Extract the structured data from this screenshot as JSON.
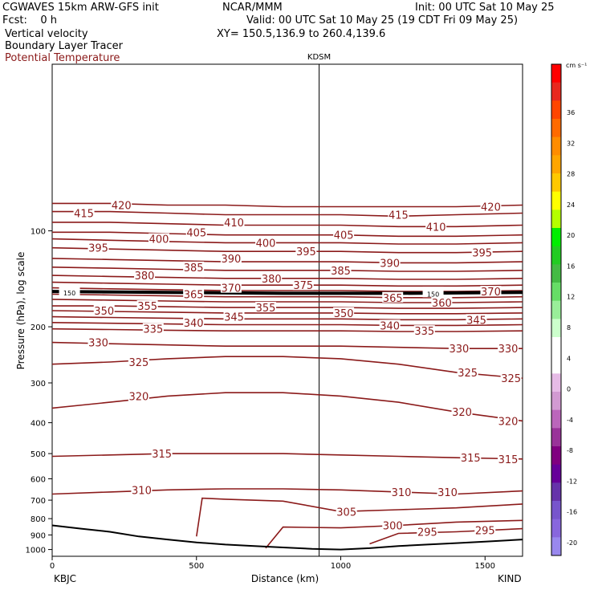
{
  "header": {
    "model": "CGWAVES 15km ARW-GFS init",
    "org": "NCAR/MMM",
    "init": "Init: 00 UTC Sat 10 May 25",
    "fcst": "Fcst:    0 h",
    "valid": "Valid: 00 UTC Sat 10 May 25 (19 CDT Fri 09 May 25)",
    "field1": "Vertical velocity",
    "field2": "Boundary Layer Tracer",
    "xy": "XY= 150.5,136.9 to 260.4,139.6",
    "field3": "Potential Temperature"
  },
  "colors": {
    "theta": "#8b1a1a",
    "axis": "#000000"
  },
  "chart_data": {
    "type": "line",
    "title": "",
    "top_label": "KDSM",
    "xlabel": "Distance (km)",
    "ylabel": "Pressure (hPa), log scale",
    "x_ticks": [
      "0",
      "500",
      "1000",
      "1500"
    ],
    "x_tick_values": [
      0,
      500,
      1000,
      1500
    ],
    "xlim": [
      0,
      1630
    ],
    "y_ticks": [
      "100",
      "200",
      "300",
      "400",
      "500",
      "600",
      "700",
      "800",
      "900",
      "1000"
    ],
    "y_tick_values": [
      100,
      200,
      300,
      400,
      500,
      600,
      700,
      800,
      900,
      1000
    ],
    "ylim": [
      1050,
      30
    ],
    "y_scale": "log",
    "endpoint_labels": [
      "KBJC",
      "KIND"
    ],
    "marker_x": 925,
    "marker_label": "KDSM",
    "colorbar": {
      "units": "cm s⁻¹",
      "labels": [
        "36",
        "32",
        "28",
        "24",
        "20",
        "16",
        "12",
        "8",
        "4",
        "0",
        "-4",
        "-8",
        "-12",
        "-16",
        "-20"
      ],
      "colors": [
        "#ff0000",
        "#e8281e",
        "#ff4500",
        "#ff6a00",
        "#ff8c00",
        "#ffa500",
        "#ffc800",
        "#ffff00",
        "#b4ff00",
        "#00ee00",
        "#22cc22",
        "#44bb44",
        "#66dd66",
        "#99ee99",
        "#ccffcc",
        "#ffffff",
        "#ffffff",
        "#e6bbe6",
        "#d29ad2",
        "#bb66bb",
        "#993399",
        "#800080",
        "#660099",
        "#6633aa",
        "#7755cc",
        "#8866dd",
        "#9988ee"
      ]
    },
    "series": [
      {
        "name": "415",
        "x": [
          0,
          200,
          400,
          600,
          800,
          1000,
          1200,
          1400,
          1630
        ],
        "y": [
          87,
          87,
          88,
          89,
          89,
          89,
          90,
          89,
          88
        ]
      },
      {
        "name": "420",
        "x": [
          0,
          200,
          400,
          600,
          800,
          1000,
          1200,
          1400,
          1630
        ],
        "y": [
          82,
          82,
          83,
          83,
          84,
          84,
          84,
          84,
          83
        ]
      },
      {
        "name": "410",
        "x": [
          0,
          200,
          400,
          600,
          800,
          1000,
          1200,
          1400,
          1630
        ],
        "y": [
          94,
          94,
          95,
          96,
          96,
          96,
          97,
          97,
          96
        ]
      },
      {
        "name": "405",
        "x": [
          0,
          200,
          400,
          600,
          800,
          1000,
          1200,
          1400,
          1630
        ],
        "y": [
          101,
          101,
          102,
          103,
          103,
          103,
          104,
          104,
          103
        ]
      },
      {
        "name": "400",
        "x": [
          0,
          200,
          400,
          600,
          800,
          1000,
          1200,
          1400,
          1630
        ],
        "y": [
          106,
          107,
          108,
          109,
          109,
          109,
          110,
          110,
          109
        ]
      },
      {
        "name": "395",
        "x": [
          0,
          200,
          400,
          600,
          800,
          1000,
          1200,
          1400,
          1630
        ],
        "y": [
          113,
          114,
          115,
          116,
          116,
          116,
          117,
          117,
          116
        ]
      },
      {
        "name": "390",
        "x": [
          0,
          200,
          400,
          600,
          800,
          1000,
          1200,
          1400,
          1630
        ],
        "y": [
          122,
          123,
          124,
          125,
          125,
          125,
          126,
          126,
          125
        ]
      },
      {
        "name": "385",
        "x": [
          0,
          200,
          400,
          600,
          800,
          1000,
          1200,
          1400,
          1630
        ],
        "y": [
          130,
          131,
          132,
          133,
          133,
          133,
          134,
          134,
          133
        ]
      },
      {
        "name": "380",
        "x": [
          0,
          200,
          400,
          600,
          800,
          1000,
          1200,
          1400,
          1630
        ],
        "y": [
          138,
          139,
          140,
          141,
          141,
          141,
          142,
          142,
          141
        ]
      },
      {
        "name": "375",
        "x": [
          0,
          200,
          400,
          600,
          800,
          1000,
          1200,
          1400,
          1630
        ],
        "y": [
          145,
          146,
          147,
          148,
          148,
          148,
          149,
          149,
          148
        ]
      },
      {
        "name": "370",
        "x": [
          0,
          200,
          400,
          600,
          800,
          1000,
          1200,
          1400,
          1630
        ],
        "y": [
          151,
          152,
          153,
          154,
          154,
          154,
          155,
          155,
          154
        ]
      },
      {
        "name": "365",
        "x": [
          0,
          200,
          400,
          600,
          800,
          1000,
          1200,
          1400,
          1630
        ],
        "y": [
          158,
          159,
          160,
          161,
          161,
          161,
          162,
          162,
          161
        ]
      },
      {
        "name": "360",
        "x": [
          0,
          200,
          400,
          600,
          800,
          1000,
          1200,
          1400,
          1630
        ],
        "y": [
          164,
          165,
          166,
          167,
          167,
          167,
          168,
          168,
          167
        ]
      },
      {
        "name": "355",
        "x": [
          0,
          200,
          400,
          600,
          800,
          1000,
          1200,
          1400,
          1630
        ],
        "y": [
          172,
          172,
          173,
          174,
          174,
          174,
          175,
          175,
          174
        ]
      },
      {
        "name": "350",
        "x": [
          0,
          200,
          400,
          600,
          800,
          1000,
          1200,
          1400,
          1630
        ],
        "y": [
          178,
          179,
          180,
          181,
          181,
          181,
          182,
          182,
          181
        ]
      },
      {
        "name": "345",
        "x": [
          0,
          200,
          400,
          600,
          800,
          1000,
          1200,
          1400,
          1630
        ],
        "y": [
          186,
          187,
          188,
          189,
          189,
          189,
          190,
          190,
          189
        ]
      },
      {
        "name": "340",
        "x": [
          0,
          200,
          400,
          600,
          800,
          1000,
          1200,
          1400,
          1630
        ],
        "y": [
          194,
          195,
          196,
          197,
          197,
          197,
          198,
          198,
          197
        ]
      },
      {
        "name": "335",
        "x": [
          0,
          200,
          400,
          600,
          800,
          1000,
          1200,
          1400,
          1630
        ],
        "y": [
          203,
          204,
          205,
          206,
          206,
          206,
          207,
          207,
          206
        ]
      },
      {
        "name": "330",
        "x": [
          0,
          200,
          400,
          600,
          800,
          1000,
          1200,
          1400,
          1630
        ],
        "y": [
          224,
          226,
          228,
          230,
          230,
          230,
          232,
          234,
          234
        ]
      },
      {
        "name": "325",
        "x": [
          0,
          200,
          400,
          600,
          800,
          1000,
          1200,
          1400,
          1630
        ],
        "y": [
          262,
          258,
          252,
          248,
          248,
          252,
          262,
          278,
          290
        ]
      },
      {
        "name": "320",
        "x": [
          0,
          200,
          400,
          600,
          800,
          1000,
          1200,
          1400,
          1630
        ],
        "y": [
          360,
          345,
          330,
          322,
          322,
          330,
          345,
          370,
          395
        ]
      },
      {
        "name": "315",
        "x": [
          0,
          200,
          400,
          600,
          800,
          1000,
          1200,
          1400,
          1630
        ],
        "y": [
          510,
          505,
          500,
          500,
          500,
          505,
          510,
          515,
          520
        ]
      },
      {
        "name": "310",
        "x": [
          0,
          200,
          400,
          600,
          800,
          1000,
          1200,
          1400,
          1630
        ],
        "y": [
          670,
          660,
          650,
          645,
          645,
          650,
          660,
          670,
          655
        ]
      },
      {
        "name": "305",
        "x": [
          500,
          520,
          600,
          800,
          1000,
          1200,
          1400,
          1630
        ],
        "y": [
          910,
          690,
          695,
          705,
          760,
          750,
          740,
          720
        ]
      },
      {
        "name": "300",
        "x": [
          740,
          800,
          1000,
          1200,
          1400,
          1630
        ],
        "y": [
          990,
          850,
          855,
          840,
          820,
          810
        ]
      },
      {
        "name": "295",
        "x": [
          1100,
          1200,
          1400,
          1630
        ],
        "y": [
          960,
          890,
          880,
          860
        ]
      }
    ],
    "tracer_line": {
      "name": "150",
      "x": [
        0,
        400,
        800,
        1200,
        1630
      ],
      "y": [
        155,
        156,
        157,
        157,
        156
      ]
    },
    "terrain": {
      "x": [
        0,
        100,
        200,
        300,
        400,
        500,
        600,
        700,
        800,
        900,
        1000,
        1100,
        1200,
        1300,
        1400,
        1500,
        1630
      ],
      "y": [
        840,
        860,
        880,
        910,
        930,
        950,
        965,
        975,
        985,
        995,
        1000,
        990,
        975,
        965,
        955,
        945,
        930
      ]
    },
    "contour_labels": [
      {
        "text": "415",
        "x": 110,
        "y": 88
      },
      {
        "text": "420",
        "x": 240,
        "y": 83
      },
      {
        "text": "410",
        "x": 630,
        "y": 94
      },
      {
        "text": "405",
        "x": 500,
        "y": 101
      },
      {
        "text": "400",
        "x": 370,
        "y": 106
      },
      {
        "text": "395",
        "x": 160,
        "y": 113
      },
      {
        "text": "390",
        "x": 620,
        "y": 122
      },
      {
        "text": "385",
        "x": 490,
        "y": 130
      },
      {
        "text": "380",
        "x": 320,
        "y": 138
      },
      {
        "text": "350",
        "x": 180,
        "y": 178
      },
      {
        "text": "355",
        "x": 330,
        "y": 172
      },
      {
        "text": "365",
        "x": 490,
        "y": 158
      },
      {
        "text": "370",
        "x": 620,
        "y": 151
      },
      {
        "text": "345",
        "x": 630,
        "y": 186
      },
      {
        "text": "340",
        "x": 490,
        "y": 194
      },
      {
        "text": "335",
        "x": 350,
        "y": 203
      },
      {
        "text": "330",
        "x": 160,
        "y": 224
      },
      {
        "text": "325",
        "x": 300,
        "y": 258
      },
      {
        "text": "320",
        "x": 300,
        "y": 330
      },
      {
        "text": "315",
        "x": 380,
        "y": 500
      },
      {
        "text": "310",
        "x": 310,
        "y": 650
      },
      {
        "text": "375",
        "x": 870,
        "y": 148
      },
      {
        "text": "380",
        "x": 760,
        "y": 141
      },
      {
        "text": "355",
        "x": 740,
        "y": 174
      },
      {
        "text": "400",
        "x": 740,
        "y": 109
      },
      {
        "text": "395",
        "x": 880,
        "y": 116
      },
      {
        "text": "405",
        "x": 1010,
        "y": 103
      },
      {
        "text": "385",
        "x": 1000,
        "y": 133
      },
      {
        "text": "350",
        "x": 1010,
        "y": 181
      },
      {
        "text": "415",
        "x": 1200,
        "y": 89
      },
      {
        "text": "410",
        "x": 1330,
        "y": 97
      },
      {
        "text": "420",
        "x": 1520,
        "y": 84
      },
      {
        "text": "390",
        "x": 1170,
        "y": 126
      },
      {
        "text": "395",
        "x": 1490,
        "y": 117
      },
      {
        "text": "365",
        "x": 1180,
        "y": 162
      },
      {
        "text": "360",
        "x": 1350,
        "y": 168
      },
      {
        "text": "370",
        "x": 1520,
        "y": 155
      },
      {
        "text": "340",
        "x": 1170,
        "y": 198
      },
      {
        "text": "335",
        "x": 1290,
        "y": 206
      },
      {
        "text": "345",
        "x": 1470,
        "y": 190
      },
      {
        "text": "330",
        "x": 1410,
        "y": 234
      },
      {
        "text": "330",
        "x": 1580,
        "y": 234
      },
      {
        "text": "325",
        "x": 1440,
        "y": 278
      },
      {
        "text": "325",
        "x": 1590,
        "y": 290
      },
      {
        "text": "320",
        "x": 1420,
        "y": 370
      },
      {
        "text": "320",
        "x": 1580,
        "y": 395
      },
      {
        "text": "315",
        "x": 1450,
        "y": 515
      },
      {
        "text": "315",
        "x": 1580,
        "y": 520
      },
      {
        "text": "310",
        "x": 1210,
        "y": 660
      },
      {
        "text": "310",
        "x": 1370,
        "y": 660
      },
      {
        "text": "305",
        "x": 1020,
        "y": 760
      },
      {
        "text": "300",
        "x": 1180,
        "y": 840
      },
      {
        "text": "295",
        "x": 1300,
        "y": 880
      },
      {
        "text": "295",
        "x": 1500,
        "y": 870
      },
      {
        "text": "150",
        "x": 60,
        "y": 155
      },
      {
        "text": "150",
        "x": 1320,
        "y": 156
      }
    ]
  }
}
